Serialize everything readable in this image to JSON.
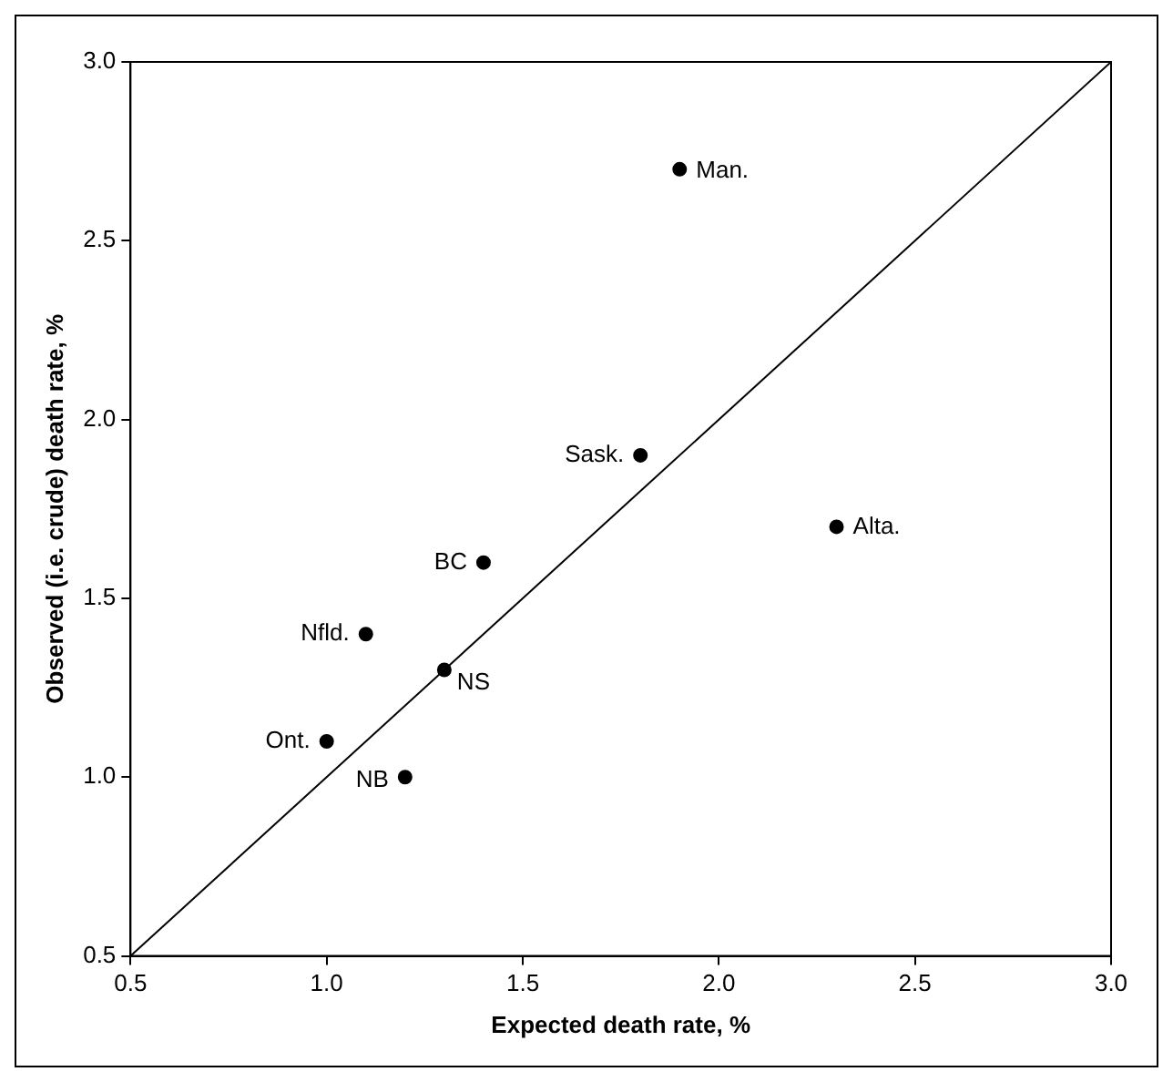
{
  "chart_data": {
    "type": "scatter",
    "xlabel": "Expected death rate, %",
    "ylabel": "Observed (i.e. crude) death rate, %",
    "series": [
      {
        "color": "#000000",
        "x": [
          1.9,
          1.8,
          2.3,
          1.4,
          1.1,
          1.3,
          1.0,
          1.2
        ],
        "values": [
          2.7,
          1.9,
          1.7,
          1.6,
          1.4,
          1.3,
          1.1,
          1.0
        ]
      },
      {
        "type": "line",
        "marker": "none",
        "color": "#000000",
        "x": [
          0.5,
          3.0
        ],
        "values": [
          0.5,
          3.0
        ]
      }
    ],
    "annotations": [
      {
        "text": "Man.",
        "x": 1.9,
        "y": 2.7
      },
      {
        "text": "Sask.",
        "x": 1.8,
        "y": 1.9
      },
      {
        "text": "Alta.",
        "x": 2.3,
        "y": 1.7
      },
      {
        "text": "BC",
        "x": 1.4,
        "y": 1.6
      },
      {
        "text": "Nfld.",
        "x": 1.1,
        "y": 1.4
      },
      {
        "text": "NS",
        "x": 1.3,
        "y": 1.3
      },
      {
        "text": "Ont.",
        "x": 1.0,
        "y": 1.1
      },
      {
        "text": "NB",
        "x": 1.2,
        "y": 1.0
      }
    ],
    "xlim": [
      0.5,
      3.0
    ],
    "ylim": [
      0.5,
      3.0
    ],
    "xticks": [
      0.5,
      {
        "value": 1,
        "label": "1.0"
      },
      1.5,
      {
        "value": 2,
        "label": "2.0"
      },
      2.5,
      {
        "value": 3,
        "label": "3.0"
      }
    ],
    "yticks": [
      0.5,
      {
        "value": 1,
        "label": "1.0"
      },
      1.5,
      {
        "value": 2,
        "label": "2.0"
      },
      2.5,
      {
        "value": 3,
        "label": "3.0"
      }
    ],
    "grid": false,
    "legend": false,
    "marker": "circle"
  }
}
